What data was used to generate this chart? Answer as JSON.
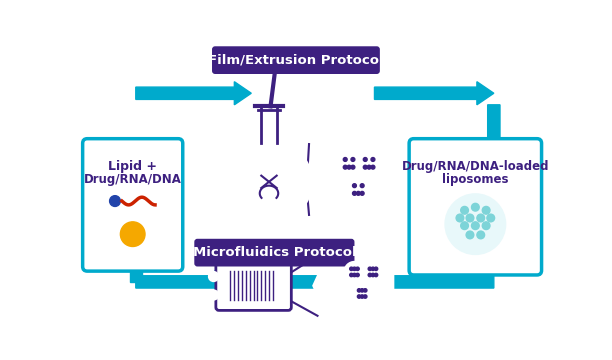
{
  "bg_color": "#ffffff",
  "teal": "#00AACC",
  "purple_dark": "#3D2080",
  "teal_light": "#7DD4D8",
  "gold": "#F5A800",
  "red_dna": "#CC2200",
  "blue_dot": "#2244AA",
  "film_label": "Film/Extrusion Protocol",
  "micro_label": "Microfluidics Protocol",
  "left_line1": "Lipid +",
  "left_line2": "Drug/RNA/DNA",
  "right_line1": "Drug/RNA/DNA-loaded",
  "right_line2": "liposomes",
  "figsize": [
    6.12,
    3.6
  ],
  "dpi": 100
}
